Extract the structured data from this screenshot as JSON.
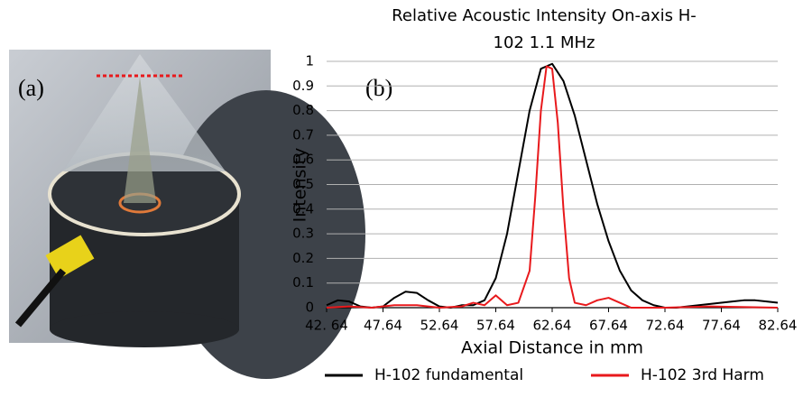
{
  "image_panel": {
    "label": "(a)"
  },
  "chart_data": {
    "type": "line",
    "title": [
      "Relative Acoustic Intensity On-axis H-",
      "102 1.1 MHz"
    ],
    "annotation": "(b)",
    "x_label": "Axial Distance in mm",
    "y_label": "Intensity",
    "xlim": [
      42.64,
      82.64
    ],
    "xticks": [
      {
        "value": 42.64,
        "label": "42. 64"
      },
      47.64,
      52.64,
      57.64,
      62.64,
      67.64,
      72.64,
      77.64,
      82.64
    ],
    "ylim": [
      0,
      1
    ],
    "yticks": [
      0,
      0.1,
      0.2,
      0.3,
      0.4,
      0.5,
      0.6,
      0.7,
      0.8,
      0.9,
      1
    ],
    "grid": true,
    "legend": "bottom",
    "series": [
      {
        "name": "H-102 fundamental",
        "color": "#000000",
        "x": [
          42.64,
          43.64,
          44.64,
          45.64,
          46.64,
          47.64,
          48.64,
          49.64,
          50.64,
          51.64,
          52.64,
          53.64,
          54.64,
          55.64,
          56.64,
          57.64,
          58.64,
          59.64,
          60.64,
          61.64,
          62.64,
          63.64,
          64.64,
          65.64,
          66.64,
          67.64,
          68.64,
          69.64,
          70.64,
          71.64,
          72.64,
          73.64,
          74.64,
          75.64,
          76.64,
          77.64,
          78.64,
          79.64,
          80.64,
          81.64,
          82.64
        ],
        "values": [
          0.01,
          0.03,
          0.025,
          0.005,
          0,
          0.005,
          0.04,
          0.065,
          0.06,
          0.03,
          0.005,
          0,
          0.01,
          0.01,
          0.03,
          0.12,
          0.3,
          0.55,
          0.8,
          0.97,
          0.99,
          0.92,
          0.78,
          0.6,
          0.42,
          0.27,
          0.15,
          0.07,
          0.03,
          0.01,
          0,
          0,
          0.005,
          0.01,
          0.015,
          0.02,
          0.025,
          0.03,
          0.03,
          0.025,
          0.02
        ]
      },
      {
        "name": "H-102 3rd Harm",
        "color": "#e8191c",
        "x": [
          42.64,
          44.64,
          46.64,
          48.64,
          50.64,
          52.64,
          54.64,
          55.64,
          56.64,
          57.64,
          58.64,
          59.64,
          60.64,
          61.14,
          61.64,
          62.14,
          62.64,
          63.14,
          63.64,
          64.14,
          64.64,
          65.64,
          66.64,
          67.64,
          68.64,
          69.64,
          72.64,
          76.64,
          82.64
        ],
        "values": [
          0,
          0.005,
          0,
          0.01,
          0.01,
          0,
          0.005,
          0.02,
          0.01,
          0.05,
          0.01,
          0.02,
          0.15,
          0.45,
          0.8,
          0.98,
          0.97,
          0.75,
          0.4,
          0.12,
          0.02,
          0.01,
          0.03,
          0.04,
          0.02,
          0,
          0,
          0.005,
          0
        ]
      }
    ]
  }
}
